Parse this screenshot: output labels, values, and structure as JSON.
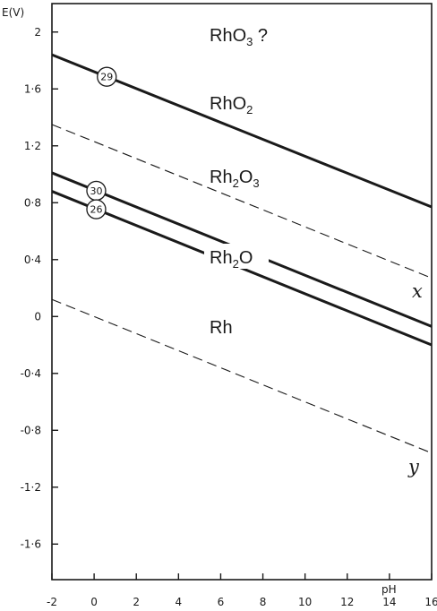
{
  "chart_data": {
    "type": "line",
    "xlabel": "pH",
    "ylabel": "E(V)",
    "xlim": [
      -2,
      16
    ],
    "ylim": [
      -1.85,
      2.2
    ],
    "x_ticks": [
      -2,
      0,
      2,
      4,
      6,
      8,
      10,
      12,
      14,
      16
    ],
    "y_ticks": [
      2,
      1.6,
      1.2,
      0.8,
      0.4,
      0,
      -0.4,
      -0.8,
      -1.2,
      -1.6
    ],
    "x_tick_labels": [
      "-2",
      "0",
      "2",
      "4",
      "6",
      "8",
      "10",
      "12",
      "14",
      "16"
    ],
    "y_tick_labels": [
      "2",
      "1·6",
      "1·2",
      "0·8",
      "0·4",
      "0",
      "-0·4",
      "-0·8",
      "-1·2",
      "-1·6"
    ],
    "grid": false,
    "series": [
      {
        "name": "29",
        "style": "solid",
        "x": [
          -2,
          16
        ],
        "y": [
          1.84,
          0.77
        ]
      },
      {
        "name": "x",
        "style": "dashed",
        "x": [
          -2,
          16
        ],
        "y": [
          1.35,
          0.27
        ]
      },
      {
        "name": "30",
        "style": "solid",
        "x": [
          -2,
          16
        ],
        "y": [
          1.01,
          -0.07
        ]
      },
      {
        "name": "26",
        "style": "solid",
        "x": [
          -2,
          16
        ],
        "y": [
          0.88,
          -0.2
        ]
      },
      {
        "name": "y",
        "style": "dashed",
        "x": [
          -2,
          16
        ],
        "y": [
          0.12,
          -0.96
        ]
      }
    ],
    "regions": [
      {
        "base": "RhO",
        "sub": "3",
        "tail": " ?"
      },
      {
        "base": "RhO",
        "sub": "2",
        "tail": ""
      },
      {
        "base": "Rh",
        "sub": "2",
        "tail": "O",
        "sub2": "3"
      },
      {
        "base": "Rh",
        "sub": "2",
        "tail": "O"
      },
      {
        "base": "Rh",
        "sub": "",
        "tail": ""
      }
    ],
    "line_markers": [
      "29",
      "30",
      "26"
    ],
    "letter_labels": [
      "x",
      "y"
    ]
  }
}
